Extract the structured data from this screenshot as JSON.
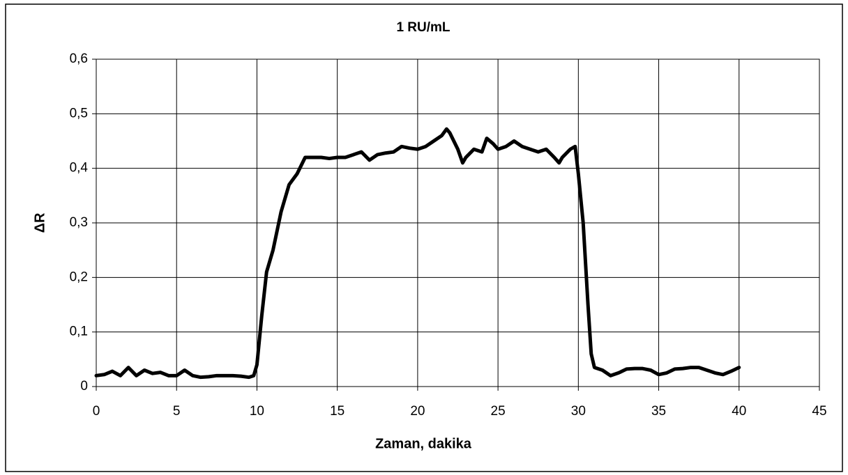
{
  "chart_data": {
    "type": "line",
    "title": "1 RU/mL",
    "x_label": "Zaman, dakika",
    "y_label": "ΔR",
    "x": [
      0,
      0.5,
      1,
      1.5,
      2,
      2.5,
      3,
      3.5,
      4,
      4.5,
      5,
      5.5,
      6,
      6.5,
      7,
      7.5,
      8,
      8.5,
      9,
      9.5,
      9.8,
      10,
      10.3,
      10.6,
      11,
      11.5,
      12,
      12.5,
      13,
      13.5,
      14,
      14.5,
      15,
      15.5,
      16,
      16.5,
      17,
      17.5,
      18,
      18.5,
      19,
      19.5,
      20,
      20.5,
      21,
      21.5,
      21.8,
      22,
      22.5,
      22.8,
      23,
      23.5,
      24,
      24.3,
      24.7,
      25,
      25.5,
      26,
      26.5,
      27,
      27.5,
      28,
      28.5,
      28.8,
      29,
      29.5,
      29.8,
      30,
      30.3,
      30.6,
      30.8,
      31,
      31.5,
      32,
      32.5,
      33,
      33.5,
      34,
      34.5,
      35,
      35.5,
      36,
      36.5,
      37,
      37.5,
      38,
      38.5,
      39,
      39.5,
      40
    ],
    "values": [
      0.02,
      0.022,
      0.028,
      0.02,
      0.035,
      0.02,
      0.03,
      0.024,
      0.026,
      0.02,
      0.02,
      0.03,
      0.02,
      0.017,
      0.018,
      0.02,
      0.02,
      0.02,
      0.019,
      0.017,
      0.02,
      0.04,
      0.13,
      0.21,
      0.25,
      0.32,
      0.37,
      0.39,
      0.42,
      0.42,
      0.42,
      0.418,
      0.42,
      0.42,
      0.425,
      0.43,
      0.415,
      0.425,
      0.428,
      0.43,
      0.44,
      0.437,
      0.435,
      0.44,
      0.45,
      0.46,
      0.472,
      0.465,
      0.435,
      0.41,
      0.42,
      0.435,
      0.43,
      0.455,
      0.445,
      0.435,
      0.44,
      0.45,
      0.44,
      0.435,
      0.43,
      0.435,
      0.42,
      0.41,
      0.42,
      0.435,
      0.44,
      0.39,
      0.3,
      0.15,
      0.06,
      0.035,
      0.03,
      0.02,
      0.025,
      0.032,
      0.033,
      0.033,
      0.03,
      0.022,
      0.025,
      0.032,
      0.033,
      0.035,
      0.035,
      0.03,
      0.025,
      0.022,
      0.028,
      0.035
    ],
    "color": "#000000",
    "xlim": [
      0,
      45
    ],
    "xticks": [
      0,
      5,
      10,
      15,
      20,
      25,
      30,
      35,
      40,
      45
    ],
    "ylim": [
      0,
      0.6
    ],
    "yticks": [
      0,
      {
        "value": 0.1,
        "label": "0,1"
      },
      {
        "value": 0.2,
        "label": "0,2"
      },
      {
        "value": 0.3,
        "label": "0,3"
      },
      {
        "value": 0.4,
        "label": "0,4"
      },
      {
        "value": 0.5,
        "label": "0,5"
      },
      {
        "value": 0.6,
        "label": "0,6"
      }
    ],
    "grid": true
  }
}
